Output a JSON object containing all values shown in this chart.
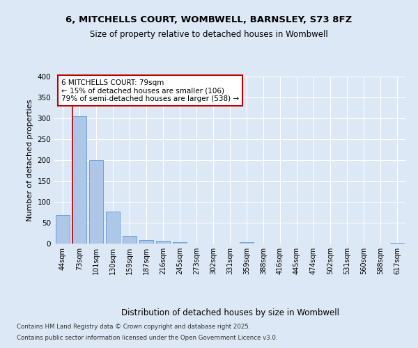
{
  "title1": "6, MITCHELLS COURT, WOMBWELL, BARNSLEY, S73 8FZ",
  "title2": "Size of property relative to detached houses in Wombwell",
  "xlabel": "Distribution of detached houses by size in Wombwell",
  "ylabel": "Number of detached properties",
  "categories": [
    "44sqm",
    "73sqm",
    "101sqm",
    "130sqm",
    "159sqm",
    "187sqm",
    "216sqm",
    "245sqm",
    "273sqm",
    "302sqm",
    "331sqm",
    "359sqm",
    "388sqm",
    "416sqm",
    "445sqm",
    "474sqm",
    "502sqm",
    "531sqm",
    "560sqm",
    "588sqm",
    "617sqm"
  ],
  "values": [
    68,
    305,
    200,
    77,
    19,
    9,
    6,
    4,
    0,
    0,
    0,
    4,
    0,
    0,
    0,
    0,
    0,
    0,
    0,
    0,
    2
  ],
  "bar_color": "#aec6e8",
  "bar_edge_color": "#5b9bd5",
  "highlight_index": 1,
  "highlight_line_color": "#c00000",
  "annotation_text": "6 MITCHELLS COURT: 79sqm\n← 15% of detached houses are smaller (106)\n79% of semi-detached houses are larger (538) →",
  "annotation_box_color": "#ffffff",
  "annotation_box_edge": "#c00000",
  "background_color": "#dce8f5",
  "plot_bg_color": "#dce8f5",
  "grid_color": "#ffffff",
  "footer_line1": "Contains HM Land Registry data © Crown copyright and database right 2025.",
  "footer_line2": "Contains public sector information licensed under the Open Government Licence v3.0.",
  "ylim": [
    0,
    400
  ],
  "yticks": [
    0,
    50,
    100,
    150,
    200,
    250,
    300,
    350,
    400
  ]
}
